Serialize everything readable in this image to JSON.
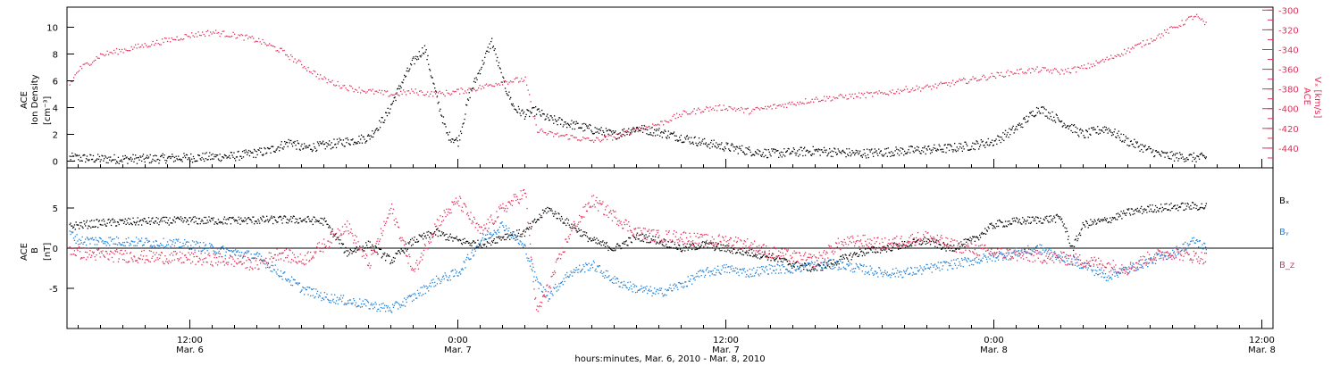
{
  "chart_data": [
    {
      "type": "scatter",
      "panel": "top",
      "ylabel_left": [
        "ACE",
        "Ion Density",
        "[cm⁻³]"
      ],
      "ylabel_right": [
        "ACE",
        "Vₓ [km/s]"
      ],
      "ylim_left": [
        -0.5,
        11.5
      ],
      "ylim_right": [
        -460,
        -297
      ],
      "yticks_left": [
        0,
        2,
        4,
        6,
        8,
        10
      ],
      "yticks_right": [
        -300,
        -320,
        -340,
        -360,
        -380,
        -400,
        -420,
        -440
      ],
      "xlim_hours": [
        6.5,
        60.5
      ],
      "series": [
        {
          "key": "density",
          "axis": "left",
          "color": "#000000",
          "x": [
            6.6,
            8,
            10,
            12,
            14,
            15.5,
            16.5,
            17,
            18,
            19,
            20,
            20.8,
            21.5,
            22,
            22.5,
            23,
            23.5,
            24,
            24.5,
            25,
            25.5,
            26,
            26.5,
            27,
            27.5,
            28,
            29,
            30,
            31,
            32,
            33,
            34,
            35,
            36,
            37,
            38,
            39,
            40,
            41,
            42,
            43,
            44,
            45,
            46,
            47,
            48,
            49,
            50,
            51,
            52,
            53,
            53.5,
            54,
            55,
            55.5,
            56,
            57,
            57.5
          ],
          "y": [
            0.3,
            0.2,
            0.2,
            0.3,
            0.4,
            0.8,
            1.5,
            1.0,
            1.2,
            1.5,
            1.8,
            3.5,
            6.0,
            7.5,
            8.5,
            5.0,
            2.0,
            1.5,
            5.0,
            7.0,
            9.0,
            6.0,
            4.0,
            3.5,
            3.8,
            3.2,
            2.8,
            2.4,
            2.0,
            2.5,
            2.2,
            1.8,
            1.4,
            1.1,
            0.8,
            0.6,
            0.7,
            0.8,
            0.7,
            0.6,
            0.7,
            0.8,
            0.9,
            1.0,
            1.2,
            1.5,
            2.5,
            4.0,
            3.0,
            2.0,
            2.5,
            2.0,
            1.5,
            0.8,
            0.5,
            0.4,
            0.3,
            0.3
          ],
          "spread": 0.35
        },
        {
          "key": "vx",
          "axis": "right",
          "color": "#e0305a",
          "x": [
            6.6,
            7,
            8,
            9,
            10,
            11,
            12,
            13,
            14,
            15,
            16,
            17,
            18,
            19,
            20,
            21,
            22,
            23,
            24,
            25,
            26,
            27,
            27.5,
            28,
            29,
            30,
            31,
            32,
            33,
            34,
            35,
            36,
            37,
            38,
            39,
            40,
            41,
            42,
            43,
            44,
            45,
            46,
            47,
            48,
            49,
            50,
            51,
            52,
            53,
            54,
            55,
            56,
            57,
            57.5
          ],
          "y": [
            -375,
            -360,
            -345,
            -340,
            -335,
            -330,
            -325,
            -322,
            -325,
            -330,
            -340,
            -355,
            -370,
            -378,
            -382,
            -385,
            -382,
            -385,
            -382,
            -378,
            -372,
            -370,
            -420,
            -425,
            -428,
            -432,
            -428,
            -420,
            -415,
            -405,
            -400,
            -398,
            -402,
            -398,
            -394,
            -390,
            -388,
            -386,
            -384,
            -380,
            -378,
            -374,
            -370,
            -366,
            -362,
            -360,
            -362,
            -358,
            -350,
            -340,
            -330,
            -318,
            -305,
            -315
          ],
          "spread": 3
        }
      ]
    },
    {
      "type": "scatter",
      "panel": "bottom",
      "ylabel_left": [
        "ACE",
        "B",
        "[nT]"
      ],
      "ylim": [
        -10,
        10
      ],
      "yticks": [
        5,
        0,
        -5
      ],
      "xlim_hours": [
        6.5,
        60.5
      ],
      "legend": [
        "Bₓ",
        "Bᵧ",
        "B_z"
      ],
      "series": [
        {
          "key": "bx",
          "name": "Bₓ",
          "color": "#000000",
          "x": [
            6.6,
            8,
            10,
            12,
            14,
            16,
            17,
            18,
            18.5,
            19,
            20,
            21,
            22,
            23,
            24,
            25,
            26,
            27,
            28,
            29,
            30,
            31,
            32,
            33,
            34,
            35,
            36,
            37,
            38,
            39,
            40,
            41,
            42,
            43,
            44,
            45,
            46,
            47,
            48,
            49,
            50,
            51,
            51.5,
            52,
            53,
            54,
            55,
            56,
            57,
            57.5
          ],
          "y": [
            2.8,
            3.2,
            3.4,
            3.5,
            3.5,
            3.6,
            3.6,
            3.4,
            1.5,
            -0.5,
            0.5,
            -1.5,
            1.0,
            2.0,
            1.0,
            0.5,
            1.5,
            2.0,
            5.0,
            3.0,
            1.0,
            0.0,
            1.5,
            1.0,
            0.0,
            0.5,
            0.0,
            -0.5,
            -1.0,
            -2.0,
            -2.5,
            -1.5,
            -0.5,
            0.0,
            0.5,
            1.0,
            0.0,
            1.0,
            3.0,
            3.4,
            3.6,
            3.8,
            0.0,
            3.0,
            3.5,
            4.5,
            5.0,
            5.2,
            5.3,
            5.2
          ],
          "spread": 0.5
        },
        {
          "key": "by",
          "name": "Bᵧ",
          "color": "#1f7fd6",
          "x": [
            6.6,
            7,
            8,
            10,
            12,
            14,
            15,
            16,
            17,
            18,
            19,
            20,
            21,
            22,
            23,
            24,
            25,
            26,
            27,
            27.5,
            28,
            29,
            30,
            31,
            32,
            33,
            34,
            35,
            36,
            37,
            38,
            39,
            40,
            41,
            42,
            43,
            44,
            45,
            46,
            47,
            48,
            49,
            50,
            51,
            52,
            53,
            54,
            55,
            56,
            57,
            57.5
          ],
          "y": [
            2.0,
            1.0,
            1.0,
            0.8,
            0.5,
            -0.5,
            -1.0,
            -3.0,
            -5.0,
            -6.0,
            -6.5,
            -7.0,
            -7.5,
            -6.0,
            -4.0,
            -3.0,
            1.0,
            3.0,
            0.0,
            -4.0,
            -6.0,
            -3.0,
            -2.0,
            -4.0,
            -5.0,
            -5.5,
            -4.5,
            -3.0,
            -2.5,
            -3.0,
            -2.5,
            -2.5,
            -2.0,
            -2.0,
            -2.5,
            -3.0,
            -3.0,
            -2.5,
            -2.0,
            -1.5,
            -1.0,
            -0.5,
            0.0,
            -1.0,
            -2.0,
            -3.5,
            -2.5,
            -1.5,
            -0.5,
            1.0,
            0.0
          ],
          "spread": 0.6
        },
        {
          "key": "bz",
          "name": "B_z",
          "color": "#e0305a",
          "x": [
            6.6,
            7,
            8,
            10,
            12,
            14,
            15,
            16,
            17,
            18,
            19,
            20,
            21,
            22,
            23,
            24,
            25,
            26,
            27,
            27.5,
            28,
            29,
            30,
            31,
            32,
            33,
            34,
            35,
            36,
            37,
            38,
            39,
            40,
            41,
            42,
            43,
            44,
            45,
            46,
            47,
            48,
            49,
            50,
            51,
            52,
            53,
            54,
            55,
            56,
            57,
            57.5
          ],
          "y": [
            0.0,
            -0.5,
            -0.8,
            -1.0,
            -1.2,
            -1.5,
            -2.0,
            -0.5,
            -1.5,
            0.5,
            3.0,
            -2.0,
            5.0,
            -3.0,
            3.0,
            6.0,
            2.0,
            5.0,
            7.0,
            -8.0,
            -5.0,
            2.0,
            6.0,
            4.0,
            2.0,
            1.5,
            1.5,
            1.0,
            1.0,
            0.5,
            -0.5,
            -1.0,
            -1.5,
            0.5,
            1.0,
            0.5,
            1.0,
            1.5,
            0.5,
            0.0,
            -0.5,
            -0.8,
            -1.0,
            -1.2,
            -1.5,
            -2.0,
            -2.5,
            -1.0,
            -0.5,
            -1.0,
            -1.2
          ],
          "spread": 0.8
        }
      ]
    }
  ],
  "x_ticks": [
    {
      "hour": 12,
      "time": "12:00",
      "date": "Mar. 6"
    },
    {
      "hour": 24,
      "time": "0:00",
      "date": "Mar. 7"
    },
    {
      "hour": 36,
      "time": "12:00",
      "date": "Mar. 7"
    },
    {
      "hour": 48,
      "time": "0:00",
      "date": "Mar. 8"
    },
    {
      "hour": 60,
      "time": "12:00",
      "date": "Mar. 8"
    }
  ],
  "xlabel": "hours:minutes, Mar. 6, 2010 - Mar. 8, 2010",
  "colors": {
    "black": "#000000",
    "red": "#e0305a",
    "blue": "#1f7fd6"
  }
}
